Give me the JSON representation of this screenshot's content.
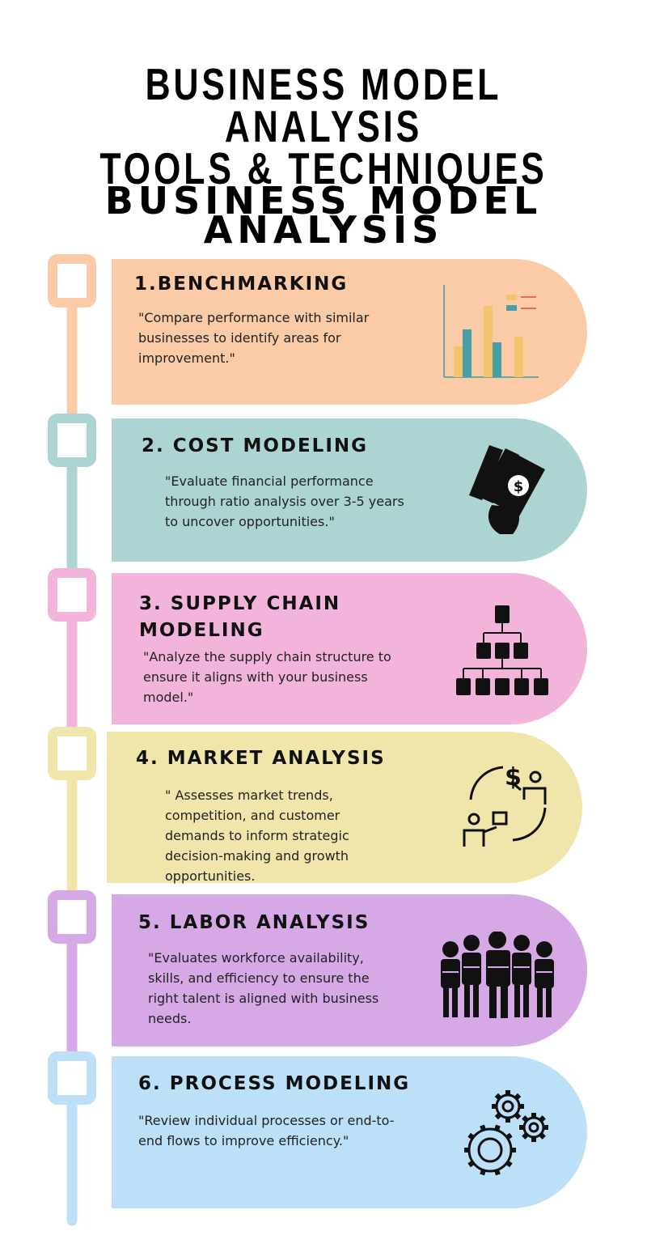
{
  "title": "BUSINESS MODEL ANALYSIS\nTOOLS & TECHNIQUES",
  "title_lines": [
    "BUSINESS MODEL ANALYSIS",
    "TOOLS & TECHNIQUES"
  ],
  "subtitle_lines": [
    "BUSINESS MODEL",
    "ANALYSIS"
  ],
  "colors": {
    "peach": "#fbcba8",
    "teal": "#acd4d3",
    "pink": "#f2b4db",
    "yellow": "#f0e6ac",
    "purple": "#d6a8e6",
    "blue": "#bbe0f7"
  },
  "steps": [
    {
      "title": "1.BENCHMARKING",
      "description": "\"Compare performance with similar businesses to identify areas for improvement.\"",
      "icon": "bar-chart-icon",
      "color": "#fbcba8"
    },
    {
      "title": "2. COST MODELING",
      "description": "\"Evaluate financial performance through ratio analysis over 3-5 years to uncover opportunities.\"",
      "icon": "money-hand-icon",
      "color": "#acd4d3"
    },
    {
      "title": "3. SUPPLY CHAIN MODELING",
      "description": "\"Analyze the supply chain structure to ensure it aligns with your business model.\"",
      "icon": "hierarchy-icon",
      "color": "#f2b4db"
    },
    {
      "title": "4. MARKET ANALYSIS",
      "description": "\" Assesses market trends, competition, and customer demands to inform strategic decision-making and growth opportunities.",
      "icon": "exchange-icon",
      "color": "#f0e6ac"
    },
    {
      "title": "5. LABOR ANALYSIS",
      "description": "\"Evaluates workforce availability, skills, and efficiency to ensure the right talent is aligned with business needs.",
      "icon": "workers-icon",
      "color": "#d6a8e6"
    },
    {
      "title": "6. PROCESS MODELING",
      "description": "\"Review individual processes or end-to-end flows to improve efficiency.\"",
      "icon": "gears-icon",
      "color": "#bbe0f7"
    }
  ]
}
